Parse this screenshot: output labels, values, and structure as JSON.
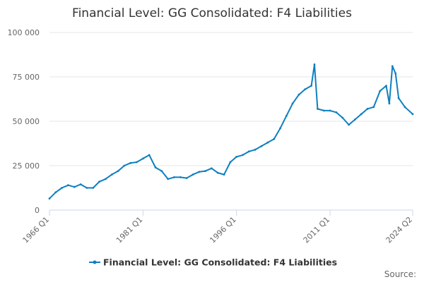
{
  "chart_data": {
    "type": "line",
    "title": "Financial Level: GG Consolidated: F4 Liabilities",
    "source_label": "Source:",
    "xlabel": "",
    "ylabel": "",
    "ylim": [
      0,
      100000
    ],
    "xlim": [
      "1966 Q1",
      "2024 Q2"
    ],
    "grid": true,
    "legend_position": "bottom",
    "y_ticks": [
      0,
      25000,
      50000,
      75000,
      100000
    ],
    "y_tick_labels": [
      "0",
      "25 000",
      "50 000",
      "75 000",
      "100 000"
    ],
    "x_ticks": [
      "1966 Q1",
      "1981 Q1",
      "1996 Q1",
      "2011 Q1",
      "2024 Q2"
    ],
    "colors": {
      "series": "#0e7fc0",
      "grid": "#e6e6e6",
      "axis": "#ccd6eb"
    },
    "series": [
      {
        "name": "Financial Level: GG Consolidated: F4 Liabilities",
        "x": [
          "1966 Q1",
          "1967 Q1",
          "1968 Q1",
          "1969 Q1",
          "1970 Q1",
          "1971 Q1",
          "1972 Q1",
          "1973 Q1",
          "1974 Q1",
          "1975 Q1",
          "1976 Q1",
          "1977 Q1",
          "1978 Q1",
          "1979 Q1",
          "1980 Q1",
          "1981 Q1",
          "1982 Q1",
          "1983 Q1",
          "1984 Q1",
          "1985 Q1",
          "1986 Q1",
          "1987 Q1",
          "1988 Q1",
          "1989 Q1",
          "1990 Q1",
          "1991 Q1",
          "1992 Q1",
          "1993 Q1",
          "1994 Q1",
          "1995 Q1",
          "1996 Q1",
          "1997 Q1",
          "1998 Q1",
          "1999 Q1",
          "2000 Q1",
          "2001 Q1",
          "2002 Q1",
          "2003 Q1",
          "2004 Q1",
          "2005 Q1",
          "2006 Q1",
          "2007 Q1",
          "2008 Q1",
          "2008 Q3",
          "2009 Q1",
          "2010 Q1",
          "2011 Q1",
          "2012 Q1",
          "2013 Q1",
          "2014 Q1",
          "2015 Q1",
          "2016 Q1",
          "2017 Q1",
          "2018 Q1",
          "2019 Q1",
          "2020 Q1",
          "2020 Q3",
          "2021 Q1",
          "2021 Q3",
          "2022 Q1",
          "2023 Q1",
          "2024 Q2"
        ],
        "values": [
          6500,
          10000,
          12500,
          14000,
          13000,
          14500,
          12500,
          12500,
          16000,
          17500,
          20000,
          22000,
          25000,
          26500,
          27000,
          29000,
          31000,
          24000,
          22000,
          17500,
          18500,
          18500,
          18000,
          20000,
          21500,
          22000,
          23500,
          21000,
          20000,
          27000,
          30000,
          31000,
          33000,
          34000,
          36000,
          38000,
          40000,
          46000,
          53000,
          60000,
          65000,
          68000,
          70000,
          82000,
          57000,
          56000,
          56000,
          55000,
          52000,
          48000,
          51000,
          54000,
          57000,
          58000,
          67000,
          70000,
          60000,
          81000,
          77000,
          63000,
          58000,
          54000
        ]
      }
    ]
  }
}
